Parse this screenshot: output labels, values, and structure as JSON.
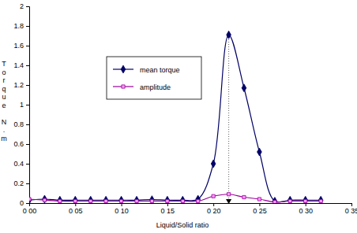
{
  "chart_data": {
    "type": "line",
    "x_label": "Liquid/Solid ratio",
    "y_label": "Torque N.m",
    "x": [
      0,
      0.0167,
      0.0333,
      0.05,
      0.0667,
      0.0833,
      0.1,
      0.1167,
      0.1333,
      0.15,
      0.1667,
      0.1833,
      0.2,
      0.2167,
      0.2333,
      0.25,
      0.2667,
      0.2833,
      0.3,
      0.3167
    ],
    "series": [
      {
        "name": "mean torque",
        "color": "#000066",
        "marker": "diamond",
        "line_style": "solid",
        "values": [
          0.03,
          0.04,
          0.03,
          0.03,
          0.03,
          0.03,
          0.03,
          0.03,
          0.035,
          0.03,
          0.03,
          0.04,
          0.4,
          1.71,
          1.17,
          0.52,
          0.02,
          0.03,
          0.03,
          0.03
        ]
      },
      {
        "name": "amplitude",
        "color": "#990099",
        "marker": "square",
        "line_style": "solid",
        "values": [
          0.04,
          0.03,
          0.02,
          0.02,
          0.02,
          0.02,
          0.02,
          0.02,
          0.02,
          0.02,
          0.02,
          0.02,
          0.07,
          0.09,
          0.06,
          0.04,
          0.01,
          0.02,
          0.02,
          0.02
        ]
      }
    ],
    "reference_x": 0.2167,
    "xlim": [
      0,
      0.35
    ],
    "xticks": [
      {
        "value": 0,
        "label": "0 00"
      },
      {
        "value": 0.05,
        "label": "0 05"
      },
      {
        "value": 0.1,
        "label": "0 10"
      },
      {
        "value": 0.15,
        "label": "0 15"
      },
      {
        "value": 0.2,
        "label": "0 20"
      },
      {
        "value": 0.25,
        "label": "0 25"
      },
      {
        "value": 0.3,
        "label": "0 30"
      },
      {
        "value": 0.35,
        "label": "0 35"
      }
    ],
    "ylim": [
      0,
      2
    ],
    "yticks": [
      0,
      0.2,
      0.4,
      0.6,
      0.8,
      1,
      1.2,
      1.4,
      1.6,
      1.8,
      2
    ],
    "grid": false,
    "legend": "left"
  }
}
